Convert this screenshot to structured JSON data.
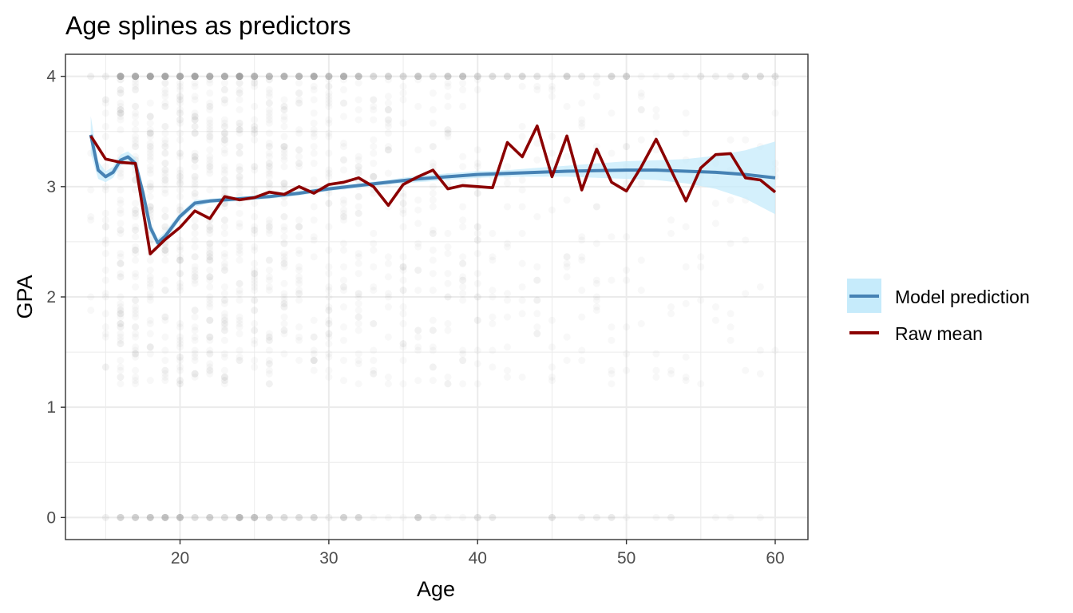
{
  "chart_data": {
    "type": "line",
    "title": "Age splines as predictors",
    "xlabel": "Age",
    "ylabel": "GPA",
    "xlim": [
      12.3,
      62.2
    ],
    "ylim": [
      -0.2,
      4.2
    ],
    "x_ticks": [
      20,
      30,
      40,
      50,
      60
    ],
    "y_ticks": [
      0,
      1,
      2,
      3,
      4
    ],
    "grid": true,
    "legend_position": "right",
    "colors": {
      "model": "#4682b4",
      "ribbon": "#c6ebfb",
      "raw": "#8b0000",
      "points": "#999999",
      "grid": "#ebebeb",
      "panel_border": "#333333"
    },
    "scatter_description": {
      "x_range": [
        14,
        60
      ],
      "y_values": "GPA observations between 0 and 4, heavily clustered at 0 and 4",
      "alpha": "low"
    },
    "series": [
      {
        "name": "Model prediction",
        "kind": "line_with_ribbon",
        "x": [
          14,
          14.5,
          15,
          15.5,
          16,
          16.5,
          17,
          17.5,
          18,
          18.5,
          19,
          19.5,
          20,
          21,
          22,
          23,
          24,
          25,
          26,
          28,
          30,
          32,
          34,
          36,
          38,
          40,
          42,
          44,
          46,
          48,
          50,
          52,
          54,
          56,
          58,
          60
        ],
        "y": [
          3.47,
          3.15,
          3.09,
          3.13,
          3.24,
          3.27,
          3.21,
          2.95,
          2.63,
          2.49,
          2.55,
          2.64,
          2.73,
          2.85,
          2.87,
          2.88,
          2.89,
          2.9,
          2.91,
          2.94,
          2.98,
          3.01,
          3.04,
          3.07,
          3.09,
          3.11,
          3.12,
          3.13,
          3.14,
          3.145,
          3.15,
          3.15,
          3.14,
          3.13,
          3.11,
          3.08
        ],
        "lower": [
          3.3,
          3.07,
          3.04,
          3.08,
          3.19,
          3.22,
          3.16,
          2.9,
          2.58,
          2.45,
          2.51,
          2.6,
          2.7,
          2.82,
          2.85,
          2.86,
          2.87,
          2.88,
          2.89,
          2.92,
          2.96,
          2.99,
          3.02,
          3.04,
          3.06,
          3.08,
          3.09,
          3.09,
          3.09,
          3.08,
          3.07,
          3.06,
          3.03,
          2.98,
          2.89,
          2.75
        ],
        "upper": [
          3.64,
          3.23,
          3.14,
          3.18,
          3.29,
          3.32,
          3.26,
          3.0,
          2.68,
          2.53,
          2.59,
          2.68,
          2.76,
          2.88,
          2.89,
          2.9,
          2.91,
          2.92,
          2.93,
          2.96,
          3.0,
          3.03,
          3.06,
          3.1,
          3.12,
          3.14,
          3.15,
          3.17,
          3.19,
          3.21,
          3.23,
          3.24,
          3.25,
          3.28,
          3.33,
          3.41
        ]
      },
      {
        "name": "Raw mean",
        "kind": "line",
        "x": [
          14,
          15,
          16,
          17,
          18,
          19,
          20,
          21,
          22,
          23,
          24,
          25,
          26,
          27,
          28,
          29,
          30,
          31,
          32,
          33,
          34,
          35,
          36,
          37,
          38,
          39,
          40,
          41,
          42,
          43,
          44,
          45,
          46,
          47,
          48,
          49,
          50,
          51,
          52,
          53,
          54,
          55,
          56,
          57,
          58,
          59,
          60
        ],
        "y": [
          3.46,
          3.25,
          3.22,
          3.21,
          2.39,
          2.52,
          2.63,
          2.78,
          2.71,
          2.91,
          2.88,
          2.9,
          2.95,
          2.93,
          3.0,
          2.94,
          3.02,
          3.04,
          3.08,
          3.0,
          2.83,
          3.02,
          3.09,
          3.15,
          2.98,
          3.01,
          3.0,
          2.99,
          3.4,
          3.27,
          3.55,
          3.09,
          3.46,
          2.97,
          3.34,
          3.04,
          2.96,
          3.18,
          3.43,
          3.15,
          2.87,
          3.17,
          3.29,
          3.3,
          3.08,
          3.06,
          2.95
        ]
      }
    ]
  }
}
